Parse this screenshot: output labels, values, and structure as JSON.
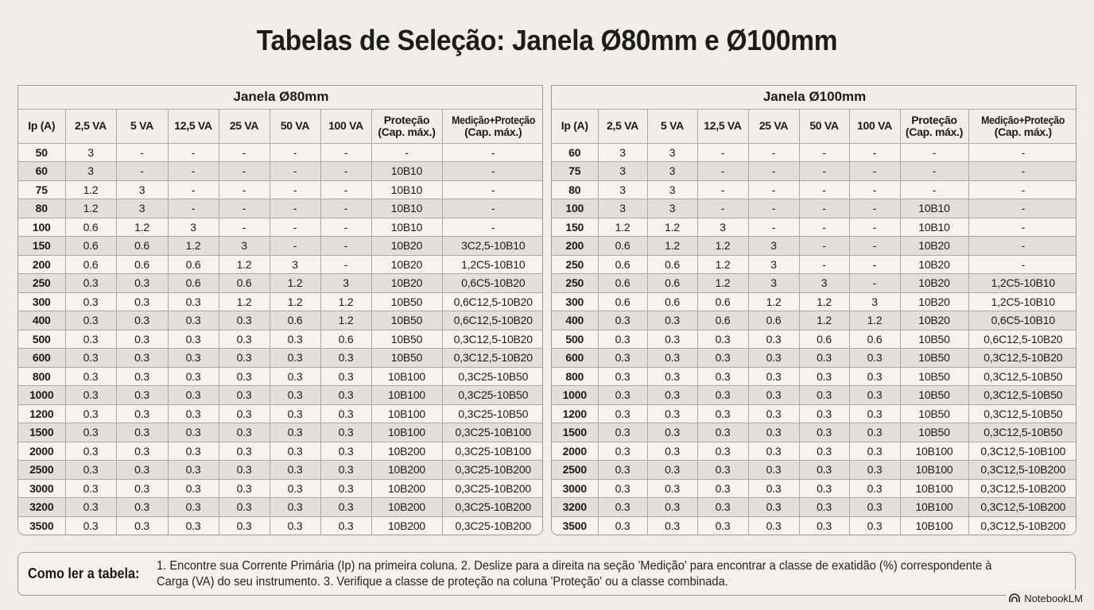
{
  "title": "Tabelas de Seleção: Janela Ø80mm e Ø100mm",
  "columns": [
    "Ip (A)",
    "2,5 VA",
    "5 VA",
    "12,5 VA",
    "25 VA",
    "50 VA",
    "100 VA",
    "Proteção (Cap. máx.)",
    "Medição+Proteção (Cap. máx.)"
  ],
  "tables": [
    {
      "caption": "Janela Ø80mm",
      "headers": {
        "ip": "Ip (A)",
        "va25": "2,5 VA",
        "va5": "5 VA",
        "va125": "12,5 VA",
        "va25b": "25 VA",
        "va50": "50 VA",
        "va100": "100 VA",
        "prot1": "Proteção",
        "prot2": "(Cap. máx.)",
        "med1": "Medição+Proteção",
        "med2": "(Cap. máx.)"
      },
      "rows": [
        [
          "50",
          "3",
          "-",
          "-",
          "-",
          "-",
          "-",
          "-",
          "-"
        ],
        [
          "60",
          "3",
          "-",
          "-",
          "-",
          "-",
          "-",
          "10B10",
          "-"
        ],
        [
          "75",
          "1.2",
          "3",
          "-",
          "-",
          "-",
          "-",
          "10B10",
          "-"
        ],
        [
          "80",
          "1.2",
          "3",
          "-",
          "-",
          "-",
          "-",
          "10B10",
          "-"
        ],
        [
          "100",
          "0.6",
          "1.2",
          "3",
          "-",
          "-",
          "-",
          "10B10",
          "-"
        ],
        [
          "150",
          "0.6",
          "0.6",
          "1.2",
          "3",
          "-",
          "-",
          "10B20",
          "3C2,5-10B10"
        ],
        [
          "200",
          "0.6",
          "0.6",
          "0.6",
          "1.2",
          "3",
          "-",
          "10B20",
          "1,2C5-10B10"
        ],
        [
          "250",
          "0.3",
          "0.3",
          "0.6",
          "0.6",
          "1.2",
          "3",
          "10B20",
          "0,6C5-10B20"
        ],
        [
          "300",
          "0.3",
          "0.3",
          "0.3",
          "1.2",
          "1.2",
          "1.2",
          "10B50",
          "0,6C12,5-10B20"
        ],
        [
          "400",
          "0.3",
          "0.3",
          "0.3",
          "0.3",
          "0.6",
          "1.2",
          "10B50",
          "0,6C12,5-10B20"
        ],
        [
          "500",
          "0.3",
          "0.3",
          "0.3",
          "0.3",
          "0.3",
          "0.6",
          "10B50",
          "0,3C12,5-10B20"
        ],
        [
          "600",
          "0.3",
          "0.3",
          "0.3",
          "0.3",
          "0.3",
          "0.3",
          "10B50",
          "0,3C12,5-10B20"
        ],
        [
          "800",
          "0.3",
          "0.3",
          "0.3",
          "0.3",
          "0.3",
          "0.3",
          "10B100",
          "0,3C25-10B50"
        ],
        [
          "1000",
          "0.3",
          "0.3",
          "0.3",
          "0.3",
          "0.3",
          "0.3",
          "10B100",
          "0,3C25-10B50"
        ],
        [
          "1200",
          "0.3",
          "0.3",
          "0.3",
          "0.3",
          "0.3",
          "0.3",
          "10B100",
          "0,3C25-10B50"
        ],
        [
          "1500",
          "0.3",
          "0.3",
          "0.3",
          "0.3",
          "0.3",
          "0.3",
          "10B100",
          "0,3C25-10B100"
        ],
        [
          "2000",
          "0.3",
          "0.3",
          "0.3",
          "0.3",
          "0.3",
          "0.3",
          "10B200",
          "0,3C25-10B100"
        ],
        [
          "2500",
          "0.3",
          "0.3",
          "0.3",
          "0.3",
          "0.3",
          "0.3",
          "10B200",
          "0,3C25-10B200"
        ],
        [
          "3000",
          "0.3",
          "0.3",
          "0.3",
          "0.3",
          "0.3",
          "0.3",
          "10B200",
          "0,3C25-10B200"
        ],
        [
          "3200",
          "0.3",
          "0.3",
          "0.3",
          "0.3",
          "0.3",
          "0.3",
          "10B200",
          "0,3C25-10B200"
        ],
        [
          "3500",
          "0.3",
          "0.3",
          "0.3",
          "0.3",
          "0.3",
          "0.3",
          "10B200",
          "0,3C25-10B200"
        ]
      ]
    },
    {
      "caption": "Janela Ø100mm",
      "headers": {
        "ip": "Ip (A)",
        "va25": "2,5 VA",
        "va5": "5 VA",
        "va125": "12,5 VA",
        "va25b": "25 VA",
        "va50": "50 VA",
        "va100": "100 VA",
        "prot1": "Proteção",
        "prot2": "(Cap. máx.)",
        "med1": "Medição+Proteção",
        "med2": "(Cap. máx.)"
      },
      "rows": [
        [
          "60",
          "3",
          "3",
          "-",
          "-",
          "-",
          "-",
          "-",
          "-"
        ],
        [
          "75",
          "3",
          "3",
          "-",
          "-",
          "-",
          "-",
          "-",
          "-"
        ],
        [
          "80",
          "3",
          "3",
          "-",
          "-",
          "-",
          "-",
          "-",
          "-"
        ],
        [
          "100",
          "3",
          "3",
          "-",
          "-",
          "-",
          "-",
          "10B10",
          "-"
        ],
        [
          "150",
          "1.2",
          "1.2",
          "3",
          "-",
          "-",
          "-",
          "10B10",
          "-"
        ],
        [
          "200",
          "0.6",
          "1.2",
          "1.2",
          "3",
          "-",
          "-",
          "10B20",
          "-"
        ],
        [
          "250",
          "0.6",
          "0.6",
          "1.2",
          "3",
          "-",
          "-",
          "10B20",
          "-"
        ],
        [
          "250",
          "0.6",
          "0.6",
          "1.2",
          "3",
          "3",
          "-",
          "10B20",
          "1,2C5-10B10"
        ],
        [
          "300",
          "0.6",
          "0.6",
          "0.6",
          "1.2",
          "1.2",
          "3",
          "10B20",
          "1,2C5-10B10"
        ],
        [
          "400",
          "0.3",
          "0.3",
          "0.6",
          "0.6",
          "1.2",
          "1.2",
          "10B20",
          "0,6C5-10B10"
        ],
        [
          "500",
          "0.3",
          "0.3",
          "0.3",
          "0.3",
          "0.6",
          "0.6",
          "10B50",
          "0,6C12,5-10B20"
        ],
        [
          "600",
          "0.3",
          "0.3",
          "0.3",
          "0.3",
          "0.3",
          "0.3",
          "10B50",
          "0,3C12,5-10B20"
        ],
        [
          "800",
          "0.3",
          "0.3",
          "0.3",
          "0.3",
          "0.3",
          "0.3",
          "10B50",
          "0,3C12,5-10B50"
        ],
        [
          "1000",
          "0.3",
          "0.3",
          "0.3",
          "0.3",
          "0.3",
          "0.3",
          "10B50",
          "0,3C12,5-10B50"
        ],
        [
          "1200",
          "0.3",
          "0.3",
          "0.3",
          "0.3",
          "0.3",
          "0.3",
          "10B50",
          "0,3C12,5-10B50"
        ],
        [
          "1500",
          "0.3",
          "0.3",
          "0.3",
          "0.3",
          "0.3",
          "0.3",
          "10B50",
          "0,3C12,5-10B50"
        ],
        [
          "2000",
          "0.3",
          "0.3",
          "0.3",
          "0.3",
          "0.3",
          "0.3",
          "10B100",
          "0,3C12,5-10B100"
        ],
        [
          "2500",
          "0.3",
          "0.3",
          "0.3",
          "0.3",
          "0.3",
          "0.3",
          "10B100",
          "0,3C12,5-10B200"
        ],
        [
          "3000",
          "0.3",
          "0.3",
          "0.3",
          "0.3",
          "0.3",
          "0.3",
          "10B100",
          "0,3C12,5-10B200"
        ],
        [
          "3200",
          "0.3",
          "0.3",
          "0.3",
          "0.3",
          "0.3",
          "0.3",
          "10B100",
          "0,3C12,5-10B200"
        ],
        [
          "3500",
          "0.3",
          "0.3",
          "0.3",
          "0.3",
          "0.3",
          "0.3",
          "10B100",
          "0,3C12,5-10B200"
        ]
      ]
    }
  ],
  "footer": {
    "label": "Como ler a tabela:",
    "text": "1. Encontre sua Corrente Primária (Ip) na primeira coluna. 2. Deslize para a direita na seção 'Medição' para encontrar a classe de exatidão (%) correspondente à Carga (VA) do seu instrumento. 3. Verifique a classe de proteção na coluna 'Proteção' ou a classe combinada."
  },
  "brand": {
    "icon": "notebooklm-logo-icon",
    "label": "NotebookLM"
  },
  "colors": {
    "background": "#efeeea",
    "table_bg": "#f4f3f0",
    "row_alt": "#e0dfdb",
    "border": "#a8a8a6",
    "text": "#1a1a1a"
  }
}
